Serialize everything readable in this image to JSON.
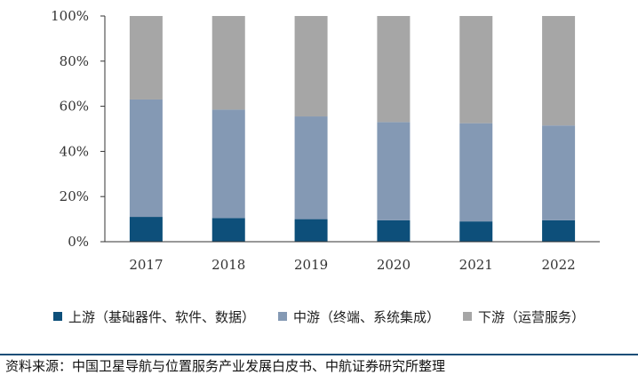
{
  "chart_data": {
    "type": "bar",
    "stacked": true,
    "categories": [
      "2017",
      "2018",
      "2019",
      "2020",
      "2021",
      "2022"
    ],
    "series": [
      {
        "name": "上游（基础器件、软件、数据）",
        "color": "#0d4f7a",
        "values": [
          11,
          10.5,
          10,
          9.5,
          9,
          9.5
        ]
      },
      {
        "name": "中游（终端、系统集成）",
        "color": "#8499b4",
        "values": [
          52,
          48,
          45.5,
          43.5,
          43.5,
          42
        ]
      },
      {
        "name": "下游（运营服务）",
        "color": "#a6a6a6",
        "values": [
          37,
          41.5,
          44.5,
          47,
          47.5,
          48.5
        ]
      }
    ],
    "yticks": [
      "0%",
      "20%",
      "40%",
      "60%",
      "80%",
      "100%"
    ],
    "ylim": [
      0,
      100
    ],
    "legend_position": "bottom",
    "grid": false
  },
  "source_text": "资料来源：中国卫星导航与位置服务产业发展白皮书、中航证券研究所整理"
}
